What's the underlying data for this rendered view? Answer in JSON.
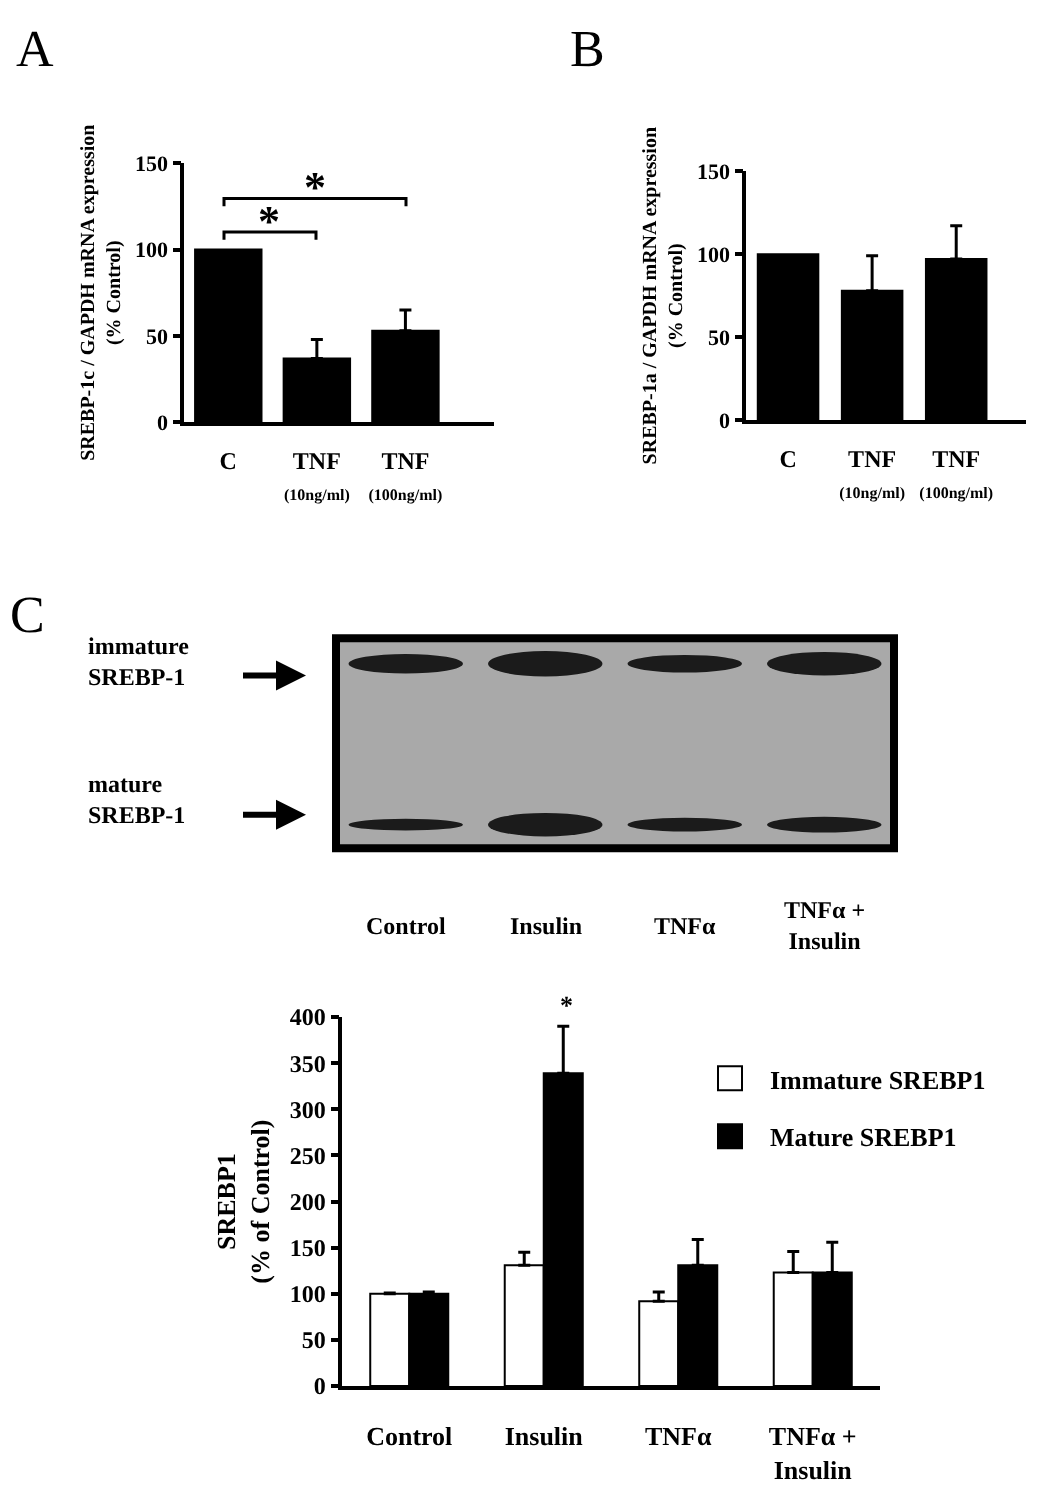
{
  "chart_data": [
    {
      "type": "bar",
      "title": "A",
      "ylabel": "SREBP-1c / GAPDH mRNA expression\n(% Control)",
      "categories": [
        "C",
        "TNF\n(10ng/ml)",
        "TNF\n(100ng/ml)"
      ],
      "values": [
        100,
        37,
        53
      ],
      "color": "#000000",
      "errors": [
        null,
        [
          37,
          48
        ],
        [
          53,
          65
        ]
      ],
      "ylim": [
        0,
        150
      ],
      "yticks": [
        0,
        50,
        100,
        150
      ],
      "annotations": [
        "*",
        "*"
      ]
    },
    {
      "type": "bar",
      "title": "B",
      "ylabel": "SREBP-1a / GAPDH mRNA expression\n(% Control)",
      "categories": [
        "C",
        "TNF\n(10ng/ml)",
        "TNF\n(100ng/ml)"
      ],
      "values": [
        100,
        78,
        97
      ],
      "color": "#000000",
      "errors": [
        null,
        [
          78,
          99
        ],
        [
          97,
          117
        ]
      ],
      "ylim": [
        0,
        150
      ],
      "yticks": [
        0,
        50,
        100,
        150
      ]
    },
    {
      "type": "other",
      "title": "C",
      "categories": [
        "Control",
        "Insulin",
        "TNFα",
        "TNFα +\nInsulin"
      ],
      "annotations": [
        "immature\nSREBP-1",
        "mature\nSREBP-1"
      ]
    },
    {
      "type": "bar",
      "ylabel": "SREBP1\n(% of Control)",
      "categories": [
        "Control",
        "Insulin",
        "TNFα",
        "TNFα +\nInsulin"
      ],
      "series": [
        {
          "name": "Immature SREBP1",
          "color": "#ffffff",
          "values": [
            100,
            131,
            92,
            123
          ],
          "errors": [
            [
              100,
              101
            ],
            [
              131,
              145
            ],
            [
              92,
              102
            ],
            [
              123,
              146
            ]
          ]
        },
        {
          "name": "Mature SREBP1",
          "color": "#000000",
          "values": [
            100,
            339,
            131,
            123
          ],
          "errors": [
            [
              100,
              102
            ],
            [
              339,
              390
            ],
            [
              131,
              159
            ],
            [
              123,
              156
            ]
          ]
        }
      ],
      "ylim": [
        0,
        400
      ],
      "yticks": [
        0,
        50,
        100,
        150,
        200,
        250,
        300,
        350,
        400
      ],
      "legend": "top right",
      "annotations": [
        "*"
      ]
    }
  ]
}
